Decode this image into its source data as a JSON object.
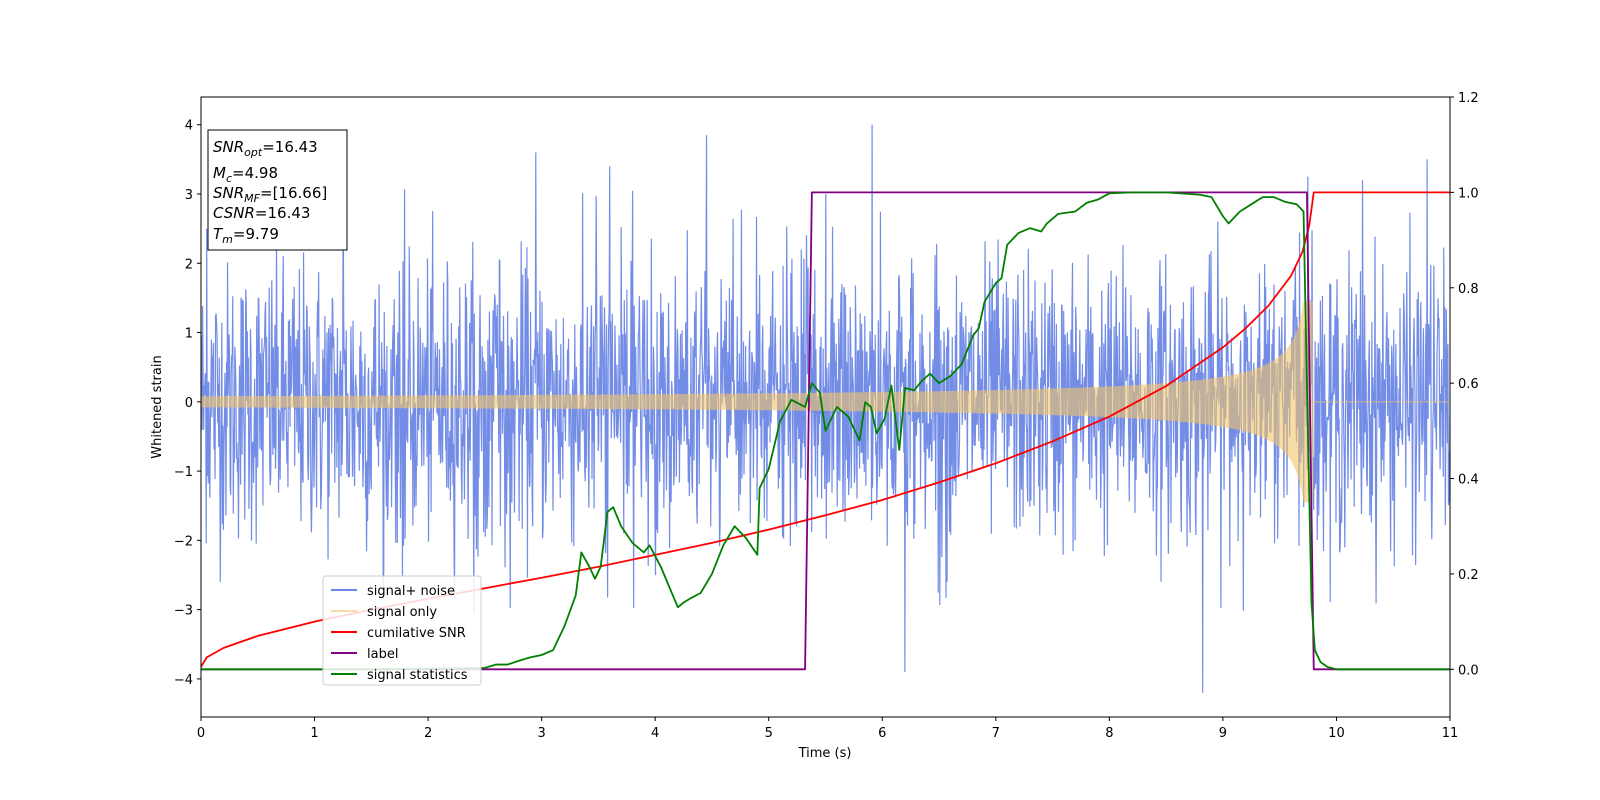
{
  "chart_data": {
    "type": "line",
    "xlabel": "Time (s)",
    "ylabel": "Whitened strain",
    "xlim": [
      0,
      11
    ],
    "ylim_left": [
      -4.55,
      4.4
    ],
    "ylim_right": [
      -0.1,
      1.2
    ],
    "x_ticks": [
      "0",
      "1",
      "2",
      "3",
      "4",
      "5",
      "6",
      "7",
      "8",
      "9",
      "10",
      "11"
    ],
    "y_left_ticks": [
      "4",
      "3",
      "2",
      "1",
      "0",
      "−1",
      "−2",
      "−3",
      "−4"
    ],
    "y_right_ticks": [
      "1.2",
      "1.0",
      "0.8",
      "0.6",
      "0.4",
      "0.2",
      "0.0"
    ],
    "info_box": {
      "snr_opt": {
        "base": "SNR",
        "sub": "opt",
        "value": "=16.43"
      },
      "mc": {
        "base": "M",
        "sub": "c",
        "value": "=4.98"
      },
      "snr_mf": {
        "base": "SNR",
        "sub": "MF",
        "value": "=[16.66]"
      },
      "csnr": {
        "base": "CSNR",
        "value": "=16.43"
      },
      "tm": {
        "base": "T",
        "sub": "m",
        "value": "=9.79"
      }
    },
    "legend_position": "lower-left",
    "series": [
      {
        "name": "signal+ noise",
        "axis": "left",
        "color": "#6b87e6",
        "kind": "noise",
        "typical_amplitude": 1.6,
        "peaks": [
          [
            0.05,
            2.5
          ],
          [
            1.25,
            3.3
          ],
          [
            2.95,
            3.6
          ],
          [
            3.6,
            3.4
          ],
          [
            4.45,
            3.85
          ],
          [
            5.5,
            3.0
          ],
          [
            5.91,
            4.0
          ],
          [
            6.2,
            -3.9
          ],
          [
            8.82,
            -4.2
          ],
          [
            10.23,
            3.2
          ],
          [
            10.8,
            3.5
          ],
          [
            9.75,
            3.25
          ]
        ]
      },
      {
        "name": "signal only",
        "axis": "left",
        "color": "#f2c56b",
        "kind": "chirp",
        "start_amplitude": 0.08,
        "peak_amplitude": 1.45,
        "merger_time": 9.79
      },
      {
        "name": "cumilative SNR",
        "axis": "right",
        "color": "#ff0000",
        "x": [
          0,
          0.05,
          0.2,
          0.5,
          1,
          1.5,
          2,
          2.5,
          3,
          3.5,
          4,
          4.5,
          5,
          5.5,
          6,
          6.5,
          7,
          7.5,
          8,
          8.5,
          9,
          9.2,
          9.4,
          9.6,
          9.7,
          9.76,
          9.8,
          10,
          11
        ],
        "values": [
          0.005,
          0.025,
          0.045,
          0.07,
          0.1,
          0.125,
          0.148,
          0.17,
          0.192,
          0.215,
          0.24,
          0.265,
          0.293,
          0.323,
          0.355,
          0.392,
          0.432,
          0.478,
          0.53,
          0.594,
          0.675,
          0.715,
          0.762,
          0.825,
          0.875,
          0.93,
          1.0,
          1.0,
          1.0
        ]
      },
      {
        "name": "label",
        "axis": "right",
        "color": "#800080",
        "x": [
          0,
          5.32,
          5.38,
          9.74,
          9.8,
          11
        ],
        "values": [
          0,
          0,
          1,
          1,
          0,
          0
        ]
      },
      {
        "name": "signal statistics",
        "axis": "right",
        "color": "#008000",
        "x": [
          0,
          1.5,
          2.5,
          2.6,
          2.7,
          2.8,
          2.9,
          3.0,
          3.1,
          3.2,
          3.3,
          3.35,
          3.42,
          3.47,
          3.52,
          3.58,
          3.63,
          3.7,
          3.8,
          3.9,
          3.95,
          4.05,
          4.12,
          4.2,
          4.25,
          4.32,
          4.4,
          4.5,
          4.6,
          4.7,
          4.8,
          4.9,
          4.92,
          5.0,
          5.1,
          5.2,
          5.32,
          5.38,
          5.45,
          5.5,
          5.6,
          5.7,
          5.8,
          5.85,
          5.9,
          5.95,
          6.02,
          6.08,
          6.15,
          6.2,
          6.28,
          6.35,
          6.42,
          6.5,
          6.6,
          6.7,
          6.8,
          6.85,
          6.9,
          7.0,
          7.05,
          7.1,
          7.2,
          7.3,
          7.4,
          7.45,
          7.55,
          7.7,
          7.8,
          7.9,
          8.0,
          8.2,
          8.5,
          8.8,
          8.9,
          9.0,
          9.05,
          9.15,
          9.25,
          9.35,
          9.45,
          9.55,
          9.65,
          9.71,
          9.74,
          9.78,
          9.81,
          9.86,
          9.92,
          10.0,
          11.0
        ],
        "values": [
          0,
          0,
          0.003,
          0.01,
          0.01,
          0.018,
          0.025,
          0.03,
          0.04,
          0.09,
          0.155,
          0.245,
          0.215,
          0.19,
          0.215,
          0.33,
          0.34,
          0.3,
          0.265,
          0.245,
          0.26,
          0.215,
          0.175,
          0.13,
          0.14,
          0.15,
          0.16,
          0.2,
          0.26,
          0.3,
          0.275,
          0.24,
          0.38,
          0.42,
          0.52,
          0.565,
          0.55,
          0.6,
          0.58,
          0.5,
          0.55,
          0.53,
          0.48,
          0.56,
          0.55,
          0.495,
          0.525,
          0.595,
          0.46,
          0.59,
          0.585,
          0.605,
          0.62,
          0.6,
          0.615,
          0.64,
          0.7,
          0.715,
          0.77,
          0.81,
          0.82,
          0.89,
          0.915,
          0.925,
          0.918,
          0.935,
          0.955,
          0.96,
          0.978,
          0.985,
          0.998,
          1.0,
          1.0,
          0.995,
          0.99,
          0.95,
          0.935,
          0.96,
          0.975,
          0.99,
          0.99,
          0.98,
          0.975,
          0.96,
          0.6,
          0.14,
          0.04,
          0.015,
          0.005,
          0.0,
          0.0
        ]
      }
    ]
  }
}
